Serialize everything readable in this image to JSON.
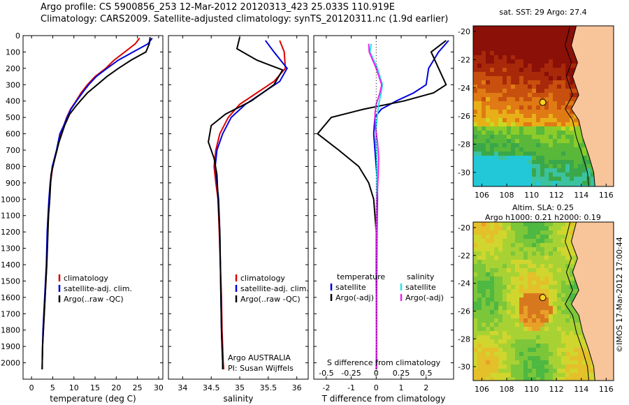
{
  "header": {
    "line1": "Argo profile: CS 5900856_253 12-Mar-2012 20120313_423 25.033S 110.919E",
    "line2": "Climatology: CARS2009. Satellite-adjusted climatology: synTS_20120311.nc (1.9d earlier)"
  },
  "colors": {
    "climatology": "#dd0000",
    "satellite": "#0000dd",
    "argo": "#000000",
    "sal_satellite": "#22e5e5",
    "sal_argo": "#ee22ee",
    "land": "#f8c49a"
  },
  "chart_data": [
    {
      "type": "line",
      "id": "temperature",
      "xlabel": "temperature (deg C)",
      "ylabel": "",
      "xlim": [
        -2,
        31
      ],
      "ylim": [
        2100,
        0
      ],
      "y_inverted": true,
      "xticks": [
        "0",
        "5",
        "10",
        "15",
        "20",
        "25",
        "30"
      ],
      "yticks": [
        "0",
        "100",
        "200",
        "300",
        "400",
        "500",
        "600",
        "700",
        "800",
        "900",
        "1000",
        "1100",
        "1200",
        "1300",
        "1400",
        "1500",
        "1600",
        "1700",
        "1800",
        "1900",
        "2000"
      ],
      "legend": [
        "climatology",
        "satellite-adj. clim.",
        "Argo(..raw -QC)"
      ],
      "series": [
        {
          "name": "climatology",
          "color": "#dd0000",
          "x": [
            25.5,
            24.5,
            22,
            19.5,
            17.5,
            15,
            13.2,
            11.7,
            10.5,
            9.2,
            8.3,
            7.6,
            6.8,
            6.0,
            5.0,
            4.5,
            4.2,
            3.8,
            3.6,
            3.4,
            3.2,
            3.0,
            2.8,
            2.6,
            2.5
          ],
          "y": [
            15,
            50,
            100,
            150,
            200,
            250,
            300,
            350,
            400,
            450,
            500,
            550,
            600,
            700,
            800,
            900,
            1000,
            1200,
            1400,
            1500,
            1600,
            1700,
            1800,
            1900,
            2040
          ]
        },
        {
          "name": "satellite-adj. clim.",
          "color": "#0000dd",
          "x": [
            28.5,
            27.5,
            24,
            20.5,
            17.8,
            15.3,
            13.5,
            12.0,
            10.6,
            9.3,
            8.4,
            7.6,
            6.7,
            5.9,
            4.9,
            4.4,
            4.1,
            3.7,
            3.5,
            3.3,
            3.1,
            2.9,
            2.7,
            2.6,
            2.5
          ],
          "y": [
            15,
            50,
            100,
            150,
            200,
            250,
            300,
            350,
            400,
            450,
            500,
            550,
            600,
            700,
            800,
            900,
            1000,
            1200,
            1400,
            1500,
            1600,
            1700,
            1800,
            1900,
            2040
          ]
        },
        {
          "name": "Argo(..raw -QC)",
          "color": "#000000",
          "x": [
            28.0,
            27.8,
            27,
            23.5,
            20.5,
            17.8,
            15.5,
            13.2,
            11.5,
            10.5,
            9.0,
            7.8,
            6.5,
            5.5,
            4.6,
            4.3,
            4.0,
            3.8,
            3.6,
            3.4,
            3.2,
            3.0,
            2.8,
            2.6,
            2.5
          ],
          "y": [
            10,
            50,
            100,
            150,
            200,
            250,
            300,
            350,
            400,
            430,
            480,
            550,
            650,
            750,
            850,
            1000,
            1100,
            1250,
            1400,
            1500,
            1600,
            1700,
            1800,
            1900,
            2040
          ]
        }
      ]
    },
    {
      "type": "line",
      "id": "salinity",
      "xlabel": "salinity",
      "ylabel": "",
      "xlim": [
        33.75,
        36.2
      ],
      "ylim": [
        2100,
        0
      ],
      "y_inverted": true,
      "xticks": [
        "34",
        "34.5",
        "35",
        "35.5",
        "36"
      ],
      "legend": [
        "climatology",
        "satellite-adj. clim.",
        "Argo(..raw -QC)"
      ],
      "annotations": [
        "Argo AUSTRALIA",
        "PI: Susan Wijffels"
      ],
      "series": [
        {
          "name": "climatology",
          "color": "#dd0000",
          "x": [
            35.7,
            35.78,
            35.8,
            35.6,
            35.3,
            35.0,
            34.8,
            34.65,
            34.58,
            34.55,
            34.58,
            34.62,
            34.64,
            34.66,
            34.68,
            34.69,
            34.7,
            34.71,
            34.72
          ],
          "y": [
            30,
            100,
            200,
            280,
            350,
            420,
            500,
            600,
            700,
            800,
            900,
            1000,
            1200,
            1400,
            1600,
            1800,
            1900,
            2000,
            2040
          ]
        },
        {
          "name": "satellite-adj. clim.",
          "color": "#0000dd",
          "x": [
            35.45,
            35.6,
            35.83,
            35.7,
            35.4,
            35.1,
            34.85,
            34.7,
            34.6,
            34.57,
            34.6,
            34.63,
            34.65,
            34.66,
            34.67,
            34.68,
            34.69,
            34.7,
            34.7
          ],
          "y": [
            30,
            100,
            200,
            280,
            350,
            420,
            500,
            600,
            700,
            800,
            900,
            1000,
            1200,
            1400,
            1600,
            1800,
            1900,
            2000,
            2040
          ]
        },
        {
          "name": "Argo(..raw -QC)",
          "color": "#000000",
          "x": [
            35.0,
            34.95,
            35.3,
            35.75,
            35.6,
            35.2,
            34.75,
            34.5,
            34.45,
            34.55,
            34.6,
            34.62,
            34.65,
            34.66,
            34.67,
            34.68,
            34.69,
            34.7,
            34.7
          ],
          "y": [
            10,
            80,
            150,
            210,
            300,
            400,
            480,
            550,
            650,
            750,
            850,
            1000,
            1200,
            1400,
            1600,
            1800,
            1900,
            2000,
            2040
          ]
        }
      ]
    },
    {
      "type": "line",
      "id": "difference",
      "xlabel": "T difference from climatology",
      "toplabel": "S difference from climatology",
      "xlim": [
        -2.5,
        3.1
      ],
      "ylim": [
        2100,
        0
      ],
      "y_inverted": true,
      "xticks": [
        "-2",
        "-1",
        "0",
        "1",
        "2"
      ],
      "top_ticks": [
        "-0.5",
        "-0.25",
        "0",
        "0.25",
        "0.5"
      ],
      "legend_t_title": "temperature",
      "legend_s_title": "salinity",
      "legend_t": [
        "satellite",
        "Argo(-adj)"
      ],
      "legend_s": [
        "satellite",
        "Argo(-adj)"
      ],
      "series": [
        {
          "name": "temperature satellite",
          "color": "#0000dd",
          "x": [
            2.9,
            2.5,
            2.1,
            2.0,
            1.5,
            0.8,
            0.2,
            -0.05,
            -0.1,
            -0.05,
            0.0,
            0.05,
            0.05,
            0.03,
            0.02,
            0.01,
            0.0
          ],
          "y": [
            30,
            100,
            200,
            300,
            350,
            400,
            450,
            500,
            600,
            700,
            800,
            900,
            1000,
            1200,
            1500,
            1800,
            2040
          ]
        },
        {
          "name": "temperature Argo(-adj)",
          "color": "#000000",
          "x": [
            2.8,
            2.2,
            2.5,
            2.8,
            2.3,
            1.1,
            -0.5,
            -1.8,
            -2.35,
            -1.5,
            -0.7,
            -0.3,
            -0.1,
            0.0,
            0.0,
            0.02,
            0.0
          ],
          "y": [
            30,
            100,
            200,
            300,
            350,
            400,
            450,
            500,
            600,
            700,
            800,
            900,
            1000,
            1200,
            1500,
            1800,
            2040
          ]
        },
        {
          "name": "salinity satellite",
          "color": "#22e5e5",
          "x": [
            -0.2,
            -0.25,
            0.05,
            0.25,
            0.2,
            0.1,
            0.05,
            0.0,
            -0.02,
            0.02,
            0.03,
            0.02,
            0.0,
            0.0,
            0.0,
            0.0
          ],
          "y": [
            50,
            100,
            200,
            300,
            350,
            420,
            480,
            560,
            650,
            750,
            850,
            1000,
            1200,
            1500,
            1800,
            2040
          ]
        },
        {
          "name": "salinity Argo(-adj)",
          "color": "#ee22ee",
          "x": [
            -0.3,
            -0.28,
            0.0,
            0.22,
            0.15,
            0.0,
            -0.05,
            -0.03,
            0.05,
            0.1,
            0.08,
            0.03,
            0.02,
            0.01,
            0.02,
            0.02
          ],
          "y": [
            50,
            100,
            200,
            300,
            350,
            420,
            480,
            560,
            650,
            750,
            850,
            1000,
            1200,
            1500,
            1800,
            2040
          ]
        }
      ]
    },
    {
      "type": "heatmap",
      "id": "sst_map",
      "title": "sat. SST: 29 Argo: 27.4",
      "xlim": [
        105.3,
        116.6
      ],
      "ylim": [
        -31,
        -19.6
      ],
      "xticks": [
        "106",
        "108",
        "110",
        "112",
        "114",
        "116"
      ],
      "yticks": [
        "-20",
        "-22",
        "-24",
        "-26",
        "-28",
        "-30"
      ],
      "marker": {
        "lon": 110.9,
        "lat": -25.03
      }
    },
    {
      "type": "heatmap",
      "id": "sla_map",
      "title": "Altim. SLA: 0.25",
      "subtitle": "Argo h1000: 0.21 h2000: 0.19",
      "xlim": [
        105.3,
        116.6
      ],
      "ylim": [
        -31,
        -19.6
      ],
      "xticks": [
        "106",
        "108",
        "110",
        "112",
        "114",
        "116"
      ],
      "yticks": [
        "-20",
        "-22",
        "-24",
        "-26",
        "-28",
        "-30"
      ],
      "marker": {
        "lon": 110.9,
        "lat": -25.03
      },
      "side_label": "©IMOS 17-Mar-2012 17:00:44"
    }
  ]
}
